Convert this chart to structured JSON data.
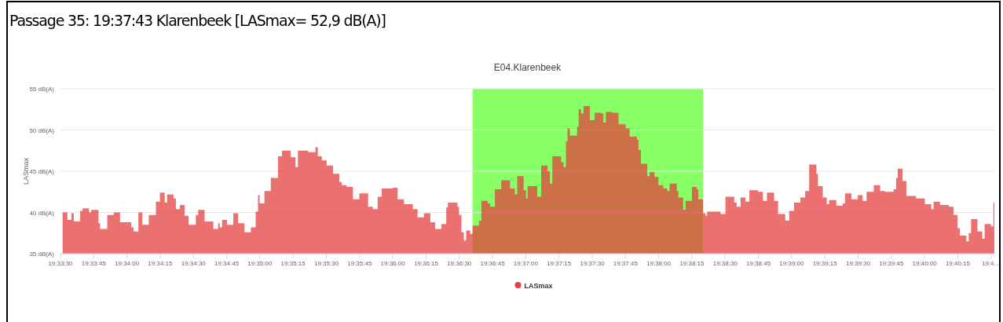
{
  "chart_data": {
    "type": "area",
    "title": "Passage 35: 19:37:43 Klarenbeek [LASmax= 52,9 dB(A)]",
    "subtitle": "E04.Klarenbeek",
    "ylabel": "LASmax",
    "xlim": [
      19.558333,
      19.675417
    ],
    "ylim": [
      35,
      55
    ],
    "yticks": [
      {
        "value": 35,
        "label": "35 dB(A)"
      },
      {
        "value": 40,
        "label": "40 dB(A)"
      },
      {
        "value": 45,
        "label": "45 dB(A)"
      },
      {
        "value": 50,
        "label": "50 dB(A)"
      },
      {
        "value": 55,
        "label": "55 dB(A)"
      }
    ],
    "xticks": [
      {
        "value": 19.558333,
        "label": "19:33:30"
      },
      {
        "value": 19.5625,
        "label": "19:33:45"
      },
      {
        "value": 19.566667,
        "label": "19:34:00"
      },
      {
        "value": 19.570833,
        "label": "19:34:15"
      },
      {
        "value": 19.575,
        "label": "19:34:30"
      },
      {
        "value": 19.579167,
        "label": "19:34:45"
      },
      {
        "value": 19.583333,
        "label": "19:35:00"
      },
      {
        "value": 19.5875,
        "label": "19:35:15"
      },
      {
        "value": 19.591667,
        "label": "19:35:30"
      },
      {
        "value": 19.595833,
        "label": "19:35:45"
      },
      {
        "value": 19.6,
        "label": "19:36:00"
      },
      {
        "value": 19.604167,
        "label": "19:36:15"
      },
      {
        "value": 19.608333,
        "label": "19:36:30"
      },
      {
        "value": 19.6125,
        "label": "19:36:45"
      },
      {
        "value": 19.616667,
        "label": "19:37:00"
      },
      {
        "value": 19.620833,
        "label": "19:37:15"
      },
      {
        "value": 19.625,
        "label": "19:37:30"
      },
      {
        "value": 19.629167,
        "label": "19:37:45"
      },
      {
        "value": 19.633333,
        "label": "19:38:00"
      },
      {
        "value": 19.6375,
        "label": "19:38:15"
      },
      {
        "value": 19.641667,
        "label": "19:38:30"
      },
      {
        "value": 19.645833,
        "label": "19:38:45"
      },
      {
        "value": 19.65,
        "label": "19:39:00"
      },
      {
        "value": 19.654167,
        "label": "19:39:15"
      },
      {
        "value": 19.658333,
        "label": "19:39:30"
      },
      {
        "value": 19.6625,
        "label": "19:39:45"
      },
      {
        "value": 19.666667,
        "label": "19:40:00"
      },
      {
        "value": 19.670833,
        "label": "19:40:15"
      },
      {
        "value": 19.675,
        "label": "19:4…"
      }
    ],
    "grid": "y",
    "legend": "bottom",
    "bands": [
      {
        "axis": "x",
        "from": 19.61,
        "to": 19.638889,
        "color": "#88ff66"
      }
    ],
    "series": [
      {
        "name": "LASmax",
        "color": "#e43e3e",
        "x": [
          19.5586,
          19.5592,
          19.5597,
          19.56,
          19.5608,
          19.5611,
          19.5619,
          19.5622,
          19.5631,
          19.5633,
          19.5642,
          19.565,
          19.5658,
          19.5672,
          19.5675,
          19.5681,
          19.5686,
          19.5694,
          19.5703,
          19.5708,
          19.5714,
          19.5717,
          19.5725,
          19.5728,
          19.5733,
          19.5739,
          19.5744,
          19.5753,
          19.5756,
          19.5764,
          19.5775,
          19.5781,
          19.5783,
          19.5786,
          19.5792,
          19.58,
          19.5806,
          19.5814,
          19.5822,
          19.5828,
          19.5831,
          19.5833,
          19.5839,
          19.5847,
          19.5856,
          19.5861,
          19.5872,
          19.5878,
          19.5881,
          19.5894,
          19.5903,
          19.5906,
          19.5911,
          19.5917,
          19.5925,
          19.5933,
          19.5936,
          19.5942,
          19.595,
          19.5958,
          19.5969,
          19.5975,
          19.5981,
          19.5986,
          19.6,
          19.6006,
          19.6014,
          19.6025,
          19.6031,
          19.6039,
          19.6047,
          19.6053,
          19.6061,
          19.6067,
          19.6069,
          19.6081,
          19.6083,
          19.6086,
          19.6089,
          19.6092,
          19.6097,
          19.61,
          19.6108,
          19.6111,
          19.6119,
          19.6122,
          19.6128,
          19.6136,
          19.6147,
          19.6153,
          19.6156,
          19.6164,
          19.6167,
          19.6169,
          19.6181,
          19.6186,
          19.6194,
          19.6197,
          19.62,
          19.6211,
          19.6214,
          19.6217,
          19.6219,
          19.6222,
          19.6231,
          19.6233,
          19.6236,
          19.6239,
          19.6247,
          19.6253,
          19.6261,
          19.6264,
          19.6267,
          19.6275,
          19.6283,
          19.6292,
          19.6297,
          19.6306,
          19.6308,
          19.6311,
          19.6319,
          19.6322,
          19.6328,
          19.6333,
          19.6339,
          19.6344,
          19.6347,
          19.6356,
          19.6358,
          19.6364,
          19.6367,
          19.6375,
          19.6381,
          19.6383,
          19.6389,
          19.6392,
          19.6394,
          19.6411,
          19.6417,
          19.6428,
          19.6431,
          19.6436,
          19.6442,
          19.6447,
          19.6458,
          19.6464,
          19.6469,
          19.6478,
          19.6483,
          19.6492,
          19.6497,
          19.6503,
          19.6511,
          19.6517,
          19.6522,
          19.6531,
          19.6533,
          19.6539,
          19.6544,
          19.6547,
          19.6556,
          19.6564,
          19.6567,
          19.6575,
          19.6583,
          19.6589,
          19.6594,
          19.6603,
          19.6611,
          19.6617,
          19.6628,
          19.6631,
          19.6633,
          19.6639,
          19.6644,
          19.6656,
          19.6667,
          19.6675,
          19.6678,
          19.6686,
          19.6697,
          19.6703,
          19.6708,
          19.6711,
          19.6719,
          19.6722,
          19.6725,
          19.6733,
          19.6739,
          19.6742,
          19.675,
          19.6753
        ],
        "values": [
          40.0,
          39.1,
          39.9,
          38.9,
          40.2,
          40.5,
          40.0,
          40.3,
          38.7,
          38.0,
          39.7,
          40.0,
          38.8,
          38.2,
          37.7,
          40.0,
          38.5,
          39.7,
          41.3,
          42.4,
          41.2,
          42.2,
          41.7,
          40.4,
          40.9,
          39.6,
          38.5,
          39.7,
          40.3,
          38.9,
          38.0,
          38.7,
          38.2,
          39.1,
          38.5,
          39.9,
          38.7,
          37.6,
          38.2,
          40.1,
          42.1,
          41.1,
          42.6,
          44.2,
          46.8,
          47.5,
          46.7,
          45.5,
          47.5,
          47.3,
          47.9,
          46.8,
          46.3,
          45.7,
          44.7,
          43.7,
          43.3,
          43.1,
          41.6,
          42.3,
          40.7,
          40.4,
          41.9,
          42.9,
          43.0,
          41.6,
          41.0,
          40.4,
          39.4,
          39.9,
          38.8,
          38.0,
          38.6,
          40.6,
          41.2,
          40.7,
          39.7,
          37.6,
          36.6,
          37.8,
          37.4,
          38.4,
          39.0,
          41.4,
          41.1,
          40.7,
          42.8,
          43.9,
          42.9,
          42.2,
          44.4,
          42.7,
          41.7,
          43.2,
          41.9,
          45.7,
          45.0,
          43.5,
          46.8,
          46.1,
          45.5,
          48.6,
          50.2,
          49.3,
          50.4,
          52.5,
          52.0,
          52.9,
          51.2,
          52.1,
          52.0,
          50.9,
          52.2,
          52.1,
          50.7,
          50.2,
          49.2,
          48.8,
          47.6,
          45.9,
          44.4,
          44.9,
          44.3,
          43.3,
          42.9,
          42.6,
          43.5,
          42.6,
          41.8,
          40.3,
          41.4,
          43.1,
          42.8,
          41.6,
          39.9,
          39.6,
          40.1,
          39.8,
          41.9,
          41.2,
          40.7,
          41.8,
          41.3,
          42.7,
          42.5,
          41.4,
          42.4,
          41.4,
          39.8,
          39.0,
          40.2,
          41.2,
          41.8,
          42.6,
          45.8,
          44.7,
          43.2,
          41.8,
          41.0,
          41.5,
          40.8,
          41.1,
          42.3,
          41.6,
          42.1,
          41.4,
          42.5,
          43.3,
          42.6,
          42.5,
          42.8,
          44.2,
          45.3,
          43.8,
          42.0,
          41.7,
          41.0,
          40.4,
          41.3,
          40.9,
          40.7,
          39.7,
          38.1,
          37.2,
          36.5,
          37.5,
          39.2,
          37.7,
          36.8,
          38.6,
          38.3,
          41.2
        ]
      }
    ]
  }
}
